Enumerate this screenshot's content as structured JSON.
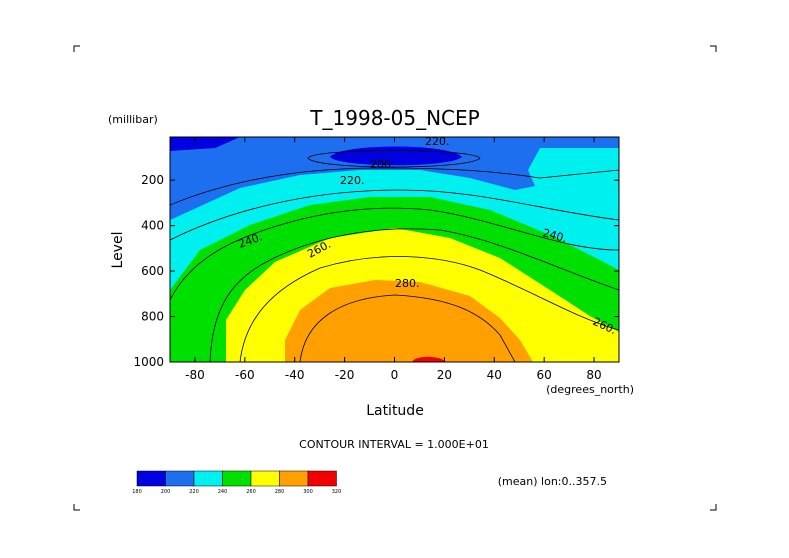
{
  "chart_data": {
    "type": "filled-contour",
    "title": "T_1998-05_NCEP",
    "xlabel": "Latitude",
    "x_units": "(degrees_north)",
    "ylabel": "Level",
    "y_units": "(millibar)",
    "x_range": [
      -90,
      90
    ],
    "y_range": [
      1000,
      10
    ],
    "y_inverted": true,
    "xticks": [
      -80,
      -60,
      -40,
      -20,
      0,
      20,
      40,
      60,
      80
    ],
    "yticks": [
      200,
      400,
      600,
      800,
      1000
    ],
    "contour_interval_text": "CONTOUR INTERVAL = 1.000E+01",
    "footer_text": "(mean) lon:0..357.5",
    "levels": [
      180,
      200,
      220,
      240,
      260,
      280,
      300,
      320
    ],
    "level_colors": [
      "#0000e0",
      "#1e6ef0",
      "#00f0f0",
      "#00e000",
      "#ffff00",
      "#ffa000",
      "#f00000"
    ],
    "contour_labels": [
      "200.",
      "220.",
      "240.",
      "260.",
      "280.",
      "240.",
      "260.",
      "220."
    ],
    "colorbar_labels": [
      "180",
      "200",
      "220",
      "240",
      "260",
      "280",
      "300",
      "320"
    ]
  }
}
